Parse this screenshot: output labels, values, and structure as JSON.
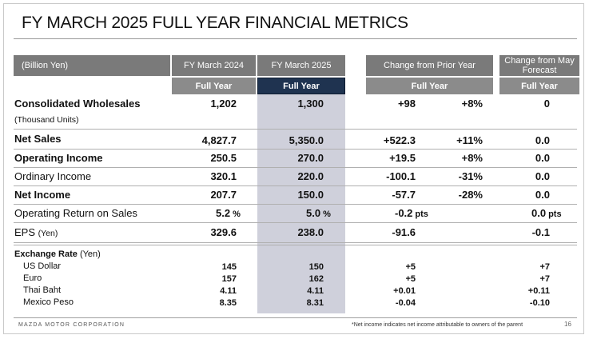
{
  "title": "FY MARCH 2025 FULL YEAR FINANCIAL METRICS",
  "header": {
    "unit": "(Billion Yen)",
    "col_fy2024": "FY March 2024",
    "col_fy2025": "FY March 2025",
    "col_change": "Change from Prior Year",
    "col_may": "Change from May Forecast",
    "sub_full_year": "Full Year"
  },
  "rows": [
    {
      "label": "Consolidated Wholesales",
      "sublabel": "(Thousand Units)",
      "fy2024": "1,202",
      "fy2025": "1,300",
      "chg": "+98",
      "pct": "+8%",
      "may": "0"
    },
    {
      "label": "Net Sales",
      "fy2024": "4,827.7",
      "fy2025": "5,350.0",
      "chg": "+522.3",
      "pct": "+11%",
      "may": "0.0"
    },
    {
      "label": "Operating Income",
      "fy2024": "250.5",
      "fy2025": "270.0",
      "chg": "+19.5",
      "pct": "+8%",
      "may": "0.0"
    },
    {
      "label": "Ordinary Income",
      "fy2024": "320.1",
      "fy2025": "220.0",
      "chg": "-100.1",
      "pct": "-31%",
      "may": "0.0"
    },
    {
      "label": "Net Income",
      "fy2024": "207.7",
      "fy2025": "150.0",
      "chg": "-57.7",
      "pct": "-28%",
      "may": "0.0"
    },
    {
      "label": "Operating Return on Sales",
      "fy2024": "5.2",
      "fy2025": "5.0",
      "chg": "-0.2",
      "may": "0.0",
      "pct_unit": "%",
      "pts_unit": "pts"
    },
    {
      "label": "EPS",
      "label_unit": "(Yen)",
      "fy2024": "329.6",
      "fy2025": "238.0",
      "chg": "-91.6",
      "may": "-0.1"
    }
  ],
  "fx": {
    "title": "Exchange Rate",
    "title_unit": "(Yen)",
    "items": [
      {
        "label": "US Dollar",
        "fy2024": "145",
        "fy2025": "150",
        "chg": "+5",
        "may": "+7"
      },
      {
        "label": "Euro",
        "fy2024": "157",
        "fy2025": "162",
        "chg": "+5",
        "may": "+7"
      },
      {
        "label": "Thai Baht",
        "fy2024": "4.11",
        "fy2025": "4.11",
        "chg": "+0.01",
        "may": "+0.11"
      },
      {
        "label": "Mexico Peso",
        "fy2024": "8.35",
        "fy2025": "8.31",
        "chg": "-0.04",
        "may": "-0.10"
      }
    ]
  },
  "footer": {
    "company": "MAZDA MOTOR CORPORATION",
    "note": "*Net income indicates net income attributable to owners of the parent",
    "page": "16"
  }
}
